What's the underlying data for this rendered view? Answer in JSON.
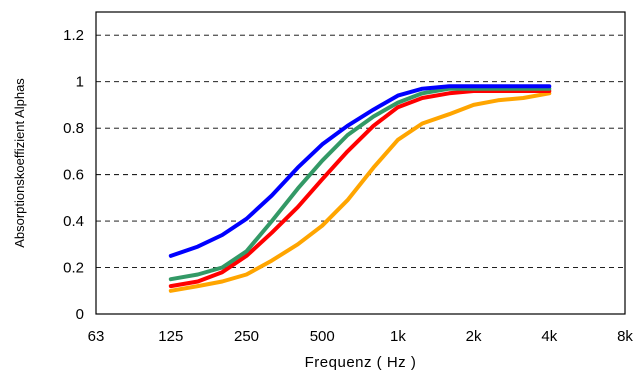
{
  "chart_data": {
    "type": "line",
    "title": "",
    "xlabel": "Frequenz ( Hz )",
    "ylabel": "Absorptionskoeffizient Alphas",
    "x_scale": "log2",
    "x_ticks": [
      63,
      125,
      250,
      500,
      1000,
      2000,
      4000,
      8000
    ],
    "x_tick_labels": [
      "63",
      "125",
      "250",
      "500",
      "1k",
      "2k",
      "4k",
      "8k"
    ],
    "ylim": [
      0,
      1.3
    ],
    "y_ticks": [
      0,
      0.2,
      0.4,
      0.6,
      0.8,
      1,
      1.2
    ],
    "y_tick_labels": [
      "0",
      "0.2",
      "0.4",
      "0.6",
      "0.8",
      "1",
      "1.2"
    ],
    "grid": "horizontal dashed",
    "legend": "none",
    "series": [
      {
        "color": "#ffa500",
        "x": [
          125,
          160,
          200,
          250,
          315,
          400,
          500,
          630,
          800,
          1000,
          1250,
          1600,
          2000,
          2500,
          3150,
          4000
        ],
        "y": [
          0.1,
          0.12,
          0.14,
          0.17,
          0.23,
          0.3,
          0.38,
          0.49,
          0.63,
          0.75,
          0.82,
          0.86,
          0.9,
          0.92,
          0.93,
          0.95
        ]
      },
      {
        "color": "#ff0000",
        "x": [
          125,
          160,
          200,
          250,
          315,
          400,
          500,
          630,
          800,
          1000,
          1250,
          1600,
          2000,
          2500,
          3150,
          4000
        ],
        "y": [
          0.12,
          0.14,
          0.18,
          0.25,
          0.35,
          0.46,
          0.58,
          0.7,
          0.81,
          0.89,
          0.93,
          0.95,
          0.96,
          0.96,
          0.96,
          0.96
        ]
      },
      {
        "color": "#339966",
        "x": [
          125,
          160,
          200,
          250,
          315,
          400,
          500,
          630,
          800,
          1000,
          1250,
          1600,
          2000,
          2500,
          3150,
          4000
        ],
        "y": [
          0.15,
          0.17,
          0.2,
          0.27,
          0.4,
          0.54,
          0.66,
          0.77,
          0.85,
          0.91,
          0.95,
          0.97,
          0.97,
          0.97,
          0.97,
          0.97
        ]
      },
      {
        "color": "#0000ff",
        "x": [
          125,
          160,
          200,
          250,
          315,
          400,
          500,
          630,
          800,
          1000,
          1250,
          1600,
          2000,
          2500,
          3150,
          4000
        ],
        "y": [
          0.25,
          0.29,
          0.34,
          0.41,
          0.51,
          0.63,
          0.73,
          0.81,
          0.88,
          0.94,
          0.97,
          0.98,
          0.98,
          0.98,
          0.98,
          0.98
        ]
      }
    ]
  }
}
